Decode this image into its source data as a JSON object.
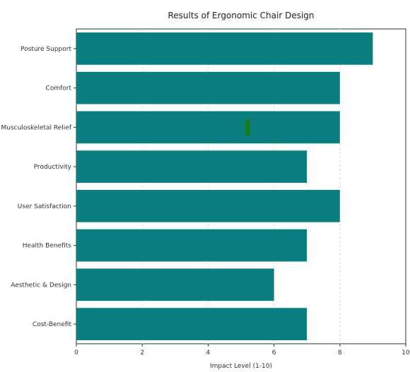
{
  "chart_data": {
    "type": "bar",
    "orientation": "horizontal",
    "title": "Results of Ergonomic Chair Design",
    "xlabel": "Impact Level (1-10)",
    "ylabel": "",
    "categories": [
      "Posture Support",
      "Comfort",
      "Musculoskeletal Relief",
      "Productivity",
      "User Satisfaction",
      "Health Benefits",
      "Aesthetic & Design",
      "Cost-Benefit"
    ],
    "values": [
      9,
      8,
      8,
      7,
      8,
      7,
      6,
      7
    ],
    "xlim": [
      0,
      10
    ],
    "xticks": [
      "0",
      "2",
      "4",
      "6",
      "8",
      "10"
    ],
    "grid": "vertical",
    "bar_color": "#0b7f7f",
    "marker": {
      "category": "Musculoskeletal Relief",
      "x": 5.2,
      "color": "#1b7a1b"
    }
  }
}
